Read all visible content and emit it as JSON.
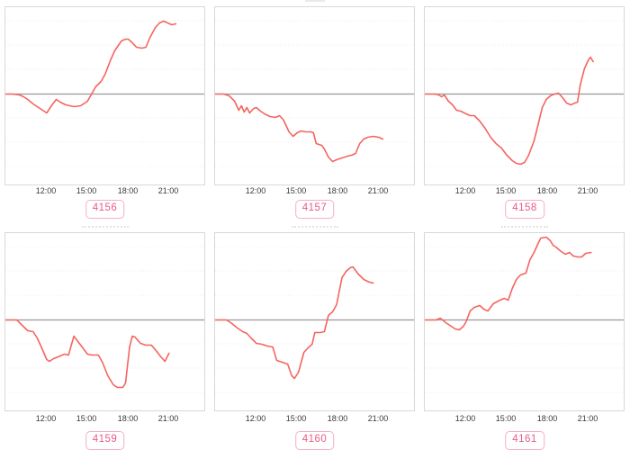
{
  "style": {
    "line_color": "#f4655f",
    "zero_line_color": "#999999",
    "grid_color": "#ececec",
    "panel_border_color": "#d8d8d8",
    "badge_border_color": "#f4afc3",
    "badge_text_color": "#e75c85",
    "axis_label_color": "#3a3a3a",
    "background": "#ffffff"
  },
  "chart_data": [
    {
      "type": "line",
      "id_label": "4156",
      "title": "",
      "xlabel": "",
      "ylabel": "",
      "x_tick_labels": [
        "12:00",
        "15:00",
        "18:00",
        "21:00"
      ],
      "x_tick_hours": [
        12,
        15,
        18,
        21
      ],
      "x_range_hours": [
        9,
        23.75
      ],
      "baseline_value": 0,
      "y_axis_labels": [],
      "grid": "faint dotted horizontal",
      "points": [
        [
          9,
          0
        ],
        [
          9.5,
          0
        ],
        [
          10,
          -1
        ],
        [
          10.3,
          -3
        ],
        [
          10.6,
          -6
        ],
        [
          11,
          -11
        ],
        [
          11.5,
          -16
        ],
        [
          12,
          -21
        ],
        [
          12.4,
          -12
        ],
        [
          12.7,
          -6
        ],
        [
          13,
          -9
        ],
        [
          13.4,
          -12
        ],
        [
          14,
          -14
        ],
        [
          14.5,
          -13
        ],
        [
          15,
          -8
        ],
        [
          15.3,
          0
        ],
        [
          15.6,
          8
        ],
        [
          16,
          14
        ],
        [
          16.3,
          22
        ],
        [
          16.7,
          38
        ],
        [
          17,
          48
        ],
        [
          17.5,
          59
        ],
        [
          17.8,
          61
        ],
        [
          18,
          61
        ],
        [
          18.3,
          57
        ],
        [
          18.6,
          52
        ],
        [
          19,
          51
        ],
        [
          19.3,
          52
        ],
        [
          19.6,
          63
        ],
        [
          20,
          74
        ],
        [
          20.3,
          79
        ],
        [
          20.6,
          81
        ],
        [
          20.9,
          79
        ],
        [
          21.2,
          77
        ],
        [
          21.5,
          78
        ]
      ]
    },
    {
      "type": "line",
      "id_label": "4157",
      "title": "",
      "xlabel": "",
      "ylabel": "",
      "x_tick_labels": [
        "12:00",
        "15:00",
        "18:00",
        "21:00"
      ],
      "x_tick_hours": [
        12,
        15,
        18,
        21
      ],
      "x_range_hours": [
        9,
        23.75
      ],
      "baseline_value": 0,
      "y_axis_labels": [],
      "grid": "faint dotted horizontal",
      "points": [
        [
          9,
          0
        ],
        [
          9.6,
          0
        ],
        [
          10,
          -2
        ],
        [
          10.4,
          -8
        ],
        [
          10.7,
          -18
        ],
        [
          10.9,
          -13
        ],
        [
          11.1,
          -20
        ],
        [
          11.3,
          -15
        ],
        [
          11.5,
          -21
        ],
        [
          11.8,
          -16
        ],
        [
          12,
          -15
        ],
        [
          12.3,
          -19
        ],
        [
          12.6,
          -22
        ],
        [
          13,
          -25
        ],
        [
          13.4,
          -26
        ],
        [
          13.7,
          -24
        ],
        [
          14,
          -29
        ],
        [
          14.4,
          -42
        ],
        [
          14.7,
          -47
        ],
        [
          15,
          -43
        ],
        [
          15.3,
          -41
        ],
        [
          15.6,
          -42
        ],
        [
          16,
          -42
        ],
        [
          16.2,
          -43
        ],
        [
          16.4,
          -55
        ],
        [
          16.8,
          -57
        ],
        [
          17,
          -61
        ],
        [
          17.3,
          -70
        ],
        [
          17.6,
          -75
        ],
        [
          17.9,
          -73
        ],
        [
          18.3,
          -71
        ],
        [
          18.7,
          -69
        ],
        [
          19,
          -68
        ],
        [
          19.3,
          -66
        ],
        [
          19.6,
          -55
        ],
        [
          19.9,
          -50
        ],
        [
          20.2,
          -48
        ],
        [
          20.6,
          -47
        ],
        [
          21,
          -48
        ],
        [
          21.3,
          -50
        ]
      ]
    },
    {
      "type": "line",
      "id_label": "4158",
      "title": "",
      "xlabel": "",
      "ylabel": "",
      "x_tick_labels": [
        "12:00",
        "15:00",
        "18:00",
        "21:00"
      ],
      "x_tick_hours": [
        12,
        15,
        18,
        21
      ],
      "x_range_hours": [
        9,
        23.75
      ],
      "baseline_value": 0,
      "y_axis_labels": [],
      "grid": "faint dotted horizontal",
      "points": [
        [
          9,
          0
        ],
        [
          9.7,
          0
        ],
        [
          10,
          -1
        ],
        [
          10.2,
          -3
        ],
        [
          10.4,
          -1
        ],
        [
          10.7,
          -8
        ],
        [
          11,
          -12
        ],
        [
          11.3,
          -18
        ],
        [
          11.6,
          -19
        ],
        [
          12,
          -22
        ],
        [
          12.3,
          -24
        ],
        [
          12.6,
          -24
        ],
        [
          13,
          -30
        ],
        [
          13.4,
          -38
        ],
        [
          13.8,
          -48
        ],
        [
          14.2,
          -55
        ],
        [
          14.6,
          -60
        ],
        [
          15,
          -68
        ],
        [
          15.4,
          -74
        ],
        [
          15.7,
          -77
        ],
        [
          16,
          -78
        ],
        [
          16.3,
          -76
        ],
        [
          16.6,
          -68
        ],
        [
          17,
          -52
        ],
        [
          17.3,
          -34
        ],
        [
          17.6,
          -15
        ],
        [
          17.9,
          -6
        ],
        [
          18.2,
          -2
        ],
        [
          18.5,
          0
        ],
        [
          18.8,
          1
        ],
        [
          19.1,
          -4
        ],
        [
          19.4,
          -10
        ],
        [
          19.7,
          -12
        ],
        [
          20,
          -10
        ],
        [
          20.2,
          -9
        ],
        [
          20.4,
          10
        ],
        [
          20.7,
          28
        ],
        [
          21,
          38
        ],
        [
          21.15,
          41
        ],
        [
          21.35,
          36
        ]
      ]
    },
    {
      "type": "line",
      "id_label": "4159",
      "title": "",
      "xlabel": "",
      "ylabel": "",
      "x_tick_labels": [
        "12:00",
        "15:00",
        "18:00",
        "21:00"
      ],
      "x_tick_hours": [
        12,
        15,
        18,
        21
      ],
      "x_range_hours": [
        9,
        23.75
      ],
      "baseline_value": 0,
      "y_axis_labels": [],
      "grid": "faint dotted horizontal",
      "points": [
        [
          9,
          0
        ],
        [
          9.8,
          0
        ],
        [
          10.2,
          -6
        ],
        [
          10.6,
          -12
        ],
        [
          11,
          -13
        ],
        [
          11.3,
          -20
        ],
        [
          11.6,
          -30
        ],
        [
          12,
          -44
        ],
        [
          12.2,
          -46
        ],
        [
          12.5,
          -43
        ],
        [
          13,
          -40
        ],
        [
          13.3,
          -38
        ],
        [
          13.6,
          -39
        ],
        [
          14,
          -18
        ],
        [
          14.3,
          -24
        ],
        [
          14.6,
          -30
        ],
        [
          15,
          -38
        ],
        [
          15.3,
          -39
        ],
        [
          15.8,
          -39
        ],
        [
          16.1,
          -47
        ],
        [
          16.5,
          -62
        ],
        [
          16.9,
          -72
        ],
        [
          17.2,
          -75
        ],
        [
          17.6,
          -75
        ],
        [
          17.8,
          -70
        ],
        [
          18.1,
          -30
        ],
        [
          18.3,
          -18
        ],
        [
          18.5,
          -19
        ],
        [
          18.9,
          -26
        ],
        [
          19.3,
          -28
        ],
        [
          19.7,
          -28
        ],
        [
          20.1,
          -35
        ],
        [
          20.4,
          -41
        ],
        [
          20.7,
          -46
        ],
        [
          21,
          -37
        ]
      ]
    },
    {
      "type": "line",
      "id_label": "4160",
      "title": "",
      "xlabel": "",
      "ylabel": "",
      "x_tick_labels": [
        "12:00",
        "15:00",
        "18:00",
        "21:00"
      ],
      "x_tick_hours": [
        12,
        15,
        18,
        21
      ],
      "x_range_hours": [
        9,
        23.75
      ],
      "baseline_value": 0,
      "y_axis_labels": [],
      "grid": "faint dotted horizontal",
      "points": [
        [
          9,
          0
        ],
        [
          9.8,
          0
        ],
        [
          10.2,
          -4
        ],
        [
          10.6,
          -9
        ],
        [
          11,
          -13
        ],
        [
          11.3,
          -15
        ],
        [
          11.6,
          -20
        ],
        [
          12,
          -26
        ],
        [
          12.4,
          -27
        ],
        [
          12.8,
          -29
        ],
        [
          13.2,
          -30
        ],
        [
          13.5,
          -45
        ],
        [
          13.9,
          -47
        ],
        [
          14.3,
          -49
        ],
        [
          14.6,
          -62
        ],
        [
          14.8,
          -65
        ],
        [
          15.1,
          -58
        ],
        [
          15.5,
          -36
        ],
        [
          15.8,
          -31
        ],
        [
          16.1,
          -27
        ],
        [
          16.3,
          -14
        ],
        [
          16.7,
          -14
        ],
        [
          17,
          -13
        ],
        [
          17.3,
          5
        ],
        [
          17.6,
          9
        ],
        [
          17.9,
          17
        ],
        [
          18.3,
          47
        ],
        [
          18.6,
          54
        ],
        [
          18.9,
          58
        ],
        [
          19.1,
          59
        ],
        [
          19.5,
          51
        ],
        [
          19.9,
          45
        ],
        [
          20.3,
          42
        ],
        [
          20.6,
          41
        ]
      ]
    },
    {
      "type": "line",
      "id_label": "4161",
      "title": "",
      "xlabel": "",
      "ylabel": "",
      "x_tick_labels": [
        "12:00",
        "15:00",
        "18:00",
        "21:00"
      ],
      "x_tick_hours": [
        12,
        15,
        18,
        21
      ],
      "x_range_hours": [
        9,
        23.75
      ],
      "baseline_value": 0,
      "y_axis_labels": [],
      "grid": "faint dotted horizontal",
      "points": [
        [
          9,
          0
        ],
        [
          9.8,
          0
        ],
        [
          10.1,
          2
        ],
        [
          10.5,
          -3
        ],
        [
          10.8,
          -6
        ],
        [
          11.2,
          -10
        ],
        [
          11.5,
          -11
        ],
        [
          11.8,
          -7
        ],
        [
          12,
          -2
        ],
        [
          12.3,
          10
        ],
        [
          12.6,
          14
        ],
        [
          13,
          16
        ],
        [
          13.3,
          12
        ],
        [
          13.6,
          10
        ],
        [
          14,
          18
        ],
        [
          14.5,
          22
        ],
        [
          14.8,
          24
        ],
        [
          15.1,
          22
        ],
        [
          15.4,
          35
        ],
        [
          15.7,
          45
        ],
        [
          16,
          50
        ],
        [
          16.4,
          52
        ],
        [
          16.7,
          67
        ],
        [
          17,
          75
        ],
        [
          17.3,
          85
        ],
        [
          17.5,
          91
        ],
        [
          17.9,
          92
        ],
        [
          18.2,
          88
        ],
        [
          18.4,
          83
        ],
        [
          18.6,
          81
        ],
        [
          19,
          76
        ],
        [
          19.3,
          73
        ],
        [
          19.6,
          75
        ],
        [
          19.9,
          71
        ],
        [
          20.2,
          70
        ],
        [
          20.5,
          70
        ],
        [
          20.8,
          74
        ],
        [
          21.2,
          75
        ]
      ]
    }
  ]
}
